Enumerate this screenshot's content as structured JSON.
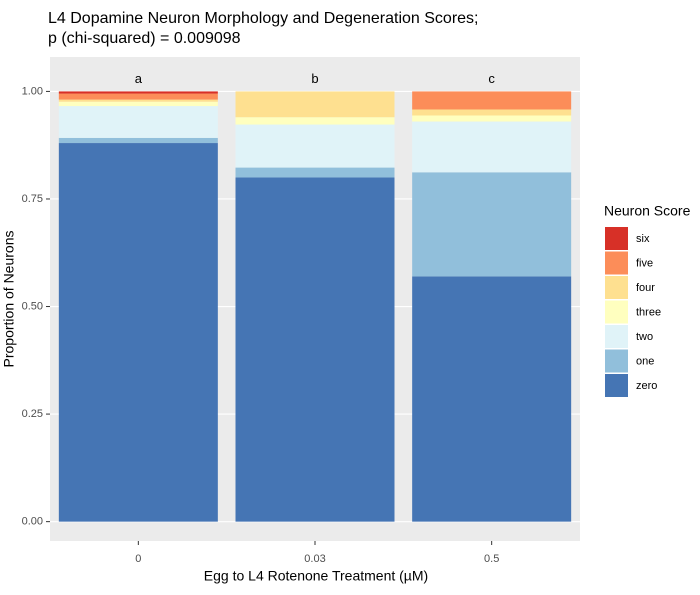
{
  "chart_data": {
    "type": "stacked_bar",
    "title": "L4 Dopamine Neuron Morphology and Degeneration Scores;",
    "subtitle": "p (chi-squared) = 0.009098",
    "x_label": "Egg to L4 Rotenone Treatment (µM)",
    "y_label": "Proportion of Neurons",
    "legend_title": "Neuron Score",
    "categories": [
      "0",
      "0.03",
      "0.5"
    ],
    "annotations": [
      "a",
      "b",
      "c"
    ],
    "series": [
      {
        "name": "zero",
        "color": "#4575b4",
        "values": [
          0.88,
          0.8,
          0.57
        ]
      },
      {
        "name": "one",
        "color": "#91bfdb",
        "values": [
          0.012,
          0.023,
          0.242
        ]
      },
      {
        "name": "two",
        "color": "#e0f3f8",
        "values": [
          0.074,
          0.1,
          0.118
        ]
      },
      {
        "name": "three",
        "color": "#ffffbf",
        "values": [
          0.01,
          0.017,
          0.014
        ]
      },
      {
        "name": "four",
        "color": "#fee090",
        "values": [
          0.005,
          0.06,
          0.014
        ]
      },
      {
        "name": "five",
        "color": "#fc8d59",
        "values": [
          0.014,
          0,
          0.042
        ]
      },
      {
        "name": "six",
        "color": "#d73027",
        "values": [
          0.005,
          0,
          0
        ]
      }
    ],
    "ylim": [
      -0.045,
      1.08
    ],
    "yticks": [
      {
        "value": 0,
        "label": "0.00"
      },
      {
        "value": 0.25,
        "label": "0.25"
      },
      {
        "value": 0.5,
        "label": "0.50"
      },
      {
        "value": 0.75,
        "label": "0.75"
      },
      {
        "value": 1,
        "label": "1.00"
      }
    ],
    "grid": true
  }
}
